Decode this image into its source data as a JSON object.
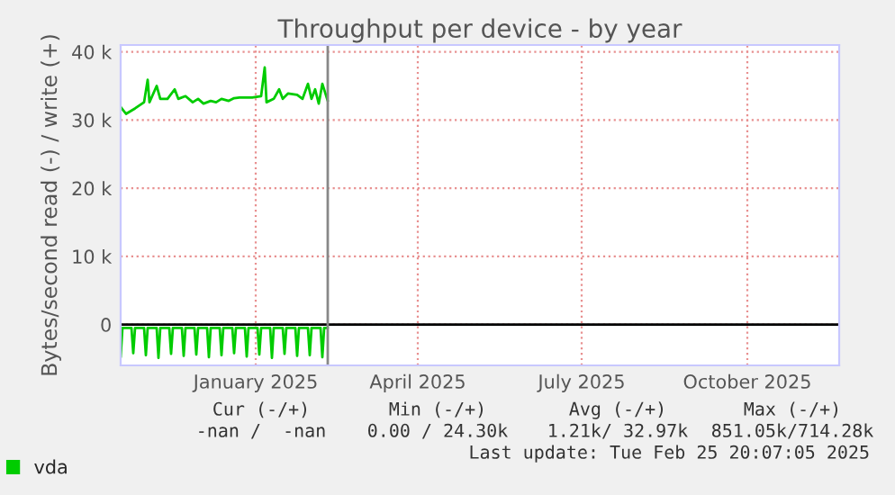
{
  "chart_data": {
    "type": "line",
    "title": "Throughput per device - by year",
    "ylabel": "Bytes/second read (-) / write (+)",
    "xlim": [
      "2024-11-02",
      "2025-12-06"
    ],
    "ylim": [
      -6000,
      41000
    ],
    "xticks": [
      {
        "value": "2025-01-16",
        "label": "January 2025"
      },
      {
        "value": "2025-04-16",
        "label": "April 2025"
      },
      {
        "value": "2025-07-16",
        "label": "July 2025"
      },
      {
        "value": "2025-10-16",
        "label": "October 2025"
      }
    ],
    "yticks": [
      {
        "value": 0,
        "label": "0"
      },
      {
        "value": 10000,
        "label": "10 k"
      },
      {
        "value": 20000,
        "label": "20 k"
      },
      {
        "value": 30000,
        "label": "30 k"
      },
      {
        "value": 40000,
        "label": "40 k"
      }
    ],
    "grid": true,
    "legend": "bottom left",
    "ref_lines": [
      {
        "axis": "y",
        "value": 0,
        "color": "#000000"
      },
      {
        "axis": "x",
        "value": "2025-02-25",
        "color": "#888888"
      }
    ],
    "series": [
      {
        "name": "vda",
        "color": "#00cc00",
        "x": [
          "2024-11-02",
          "2024-11-05",
          "2024-11-10",
          "2024-11-15",
          "2024-11-17",
          "2024-11-18",
          "2024-11-22",
          "2024-11-24",
          "2024-11-28",
          "2024-12-02",
          "2024-12-04",
          "2024-12-08",
          "2024-12-12",
          "2024-12-15",
          "2024-12-18",
          "2024-12-22",
          "2024-12-25",
          "2024-12-28",
          "2025-01-01",
          "2025-01-04",
          "2025-01-07",
          "2025-01-14",
          "2025-01-19",
          "2025-01-21",
          "2025-01-22",
          "2025-01-26",
          "2025-01-29",
          "2025-01-31",
          "2025-02-03",
          "2025-02-08",
          "2025-02-11",
          "2025-02-14",
          "2025-02-16",
          "2025-02-18",
          "2025-02-20",
          "2025-02-22",
          "2025-02-25"
        ],
        "values": [
          31900,
          30900,
          31700,
          32600,
          35900,
          32600,
          35000,
          33100,
          33100,
          34500,
          33100,
          33500,
          32600,
          33100,
          32400,
          32800,
          32600,
          33100,
          32800,
          33200,
          33300,
          33300,
          33500,
          37700,
          32600,
          33100,
          34500,
          33100,
          33900,
          33700,
          33100,
          35300,
          33100,
          34500,
          32400,
          35300,
          32800
        ]
      },
      {
        "color": "#00cc00",
        "x": [
          "2024-11-02",
          "2024-11-03",
          "2024-11-08",
          "2024-11-09",
          "2024-11-10",
          "2024-11-15",
          "2024-11-16",
          "2024-11-17",
          "2024-11-22",
          "2024-11-23",
          "2024-11-24",
          "2024-11-29",
          "2024-11-30",
          "2024-12-01",
          "2024-12-06",
          "2024-12-07",
          "2024-12-08",
          "2024-12-13",
          "2024-12-14",
          "2024-12-15",
          "2024-12-20",
          "2024-12-21",
          "2024-12-22",
          "2024-12-27",
          "2024-12-28",
          "2024-12-29",
          "2025-01-03",
          "2025-01-04",
          "2025-01-05",
          "2025-01-10",
          "2025-01-11",
          "2025-01-12",
          "2025-01-17",
          "2025-01-18",
          "2025-01-19",
          "2025-01-24",
          "2025-01-25",
          "2025-01-26",
          "2025-01-31",
          "2025-02-01",
          "2025-02-02",
          "2025-02-07",
          "2025-02-08",
          "2025-02-09",
          "2025-02-14",
          "2025-02-15",
          "2025-02-16",
          "2025-02-21",
          "2025-02-22",
          "2025-02-23",
          "2025-02-25"
        ],
        "values": [
          -4800,
          -500,
          -500,
          -4200,
          -500,
          -500,
          -4500,
          -500,
          -500,
          -4900,
          -500,
          -500,
          -4300,
          -500,
          -500,
          -4600,
          -500,
          -500,
          -4400,
          -500,
          -500,
          -4800,
          -500,
          -500,
          -4500,
          -500,
          -500,
          -4200,
          -500,
          -500,
          -4700,
          -500,
          -500,
          -4400,
          -500,
          -500,
          -4900,
          -500,
          -500,
          -4300,
          -500,
          -500,
          -4600,
          -500,
          -500,
          -4500,
          -500,
          -500,
          -4800,
          -500,
          -500
        ]
      }
    ],
    "annotations": [
      "Cur (-/+)",
      "Min (-/+)",
      "Avg (-/+)",
      "Max (-/+)",
      "-nan /  -nan",
      "0.00 / 24.30k",
      "1.21k/ 32.97k",
      "851.05k/714.28k",
      "Last update: Tue Feb 25 20:07:05 2025"
    ]
  }
}
